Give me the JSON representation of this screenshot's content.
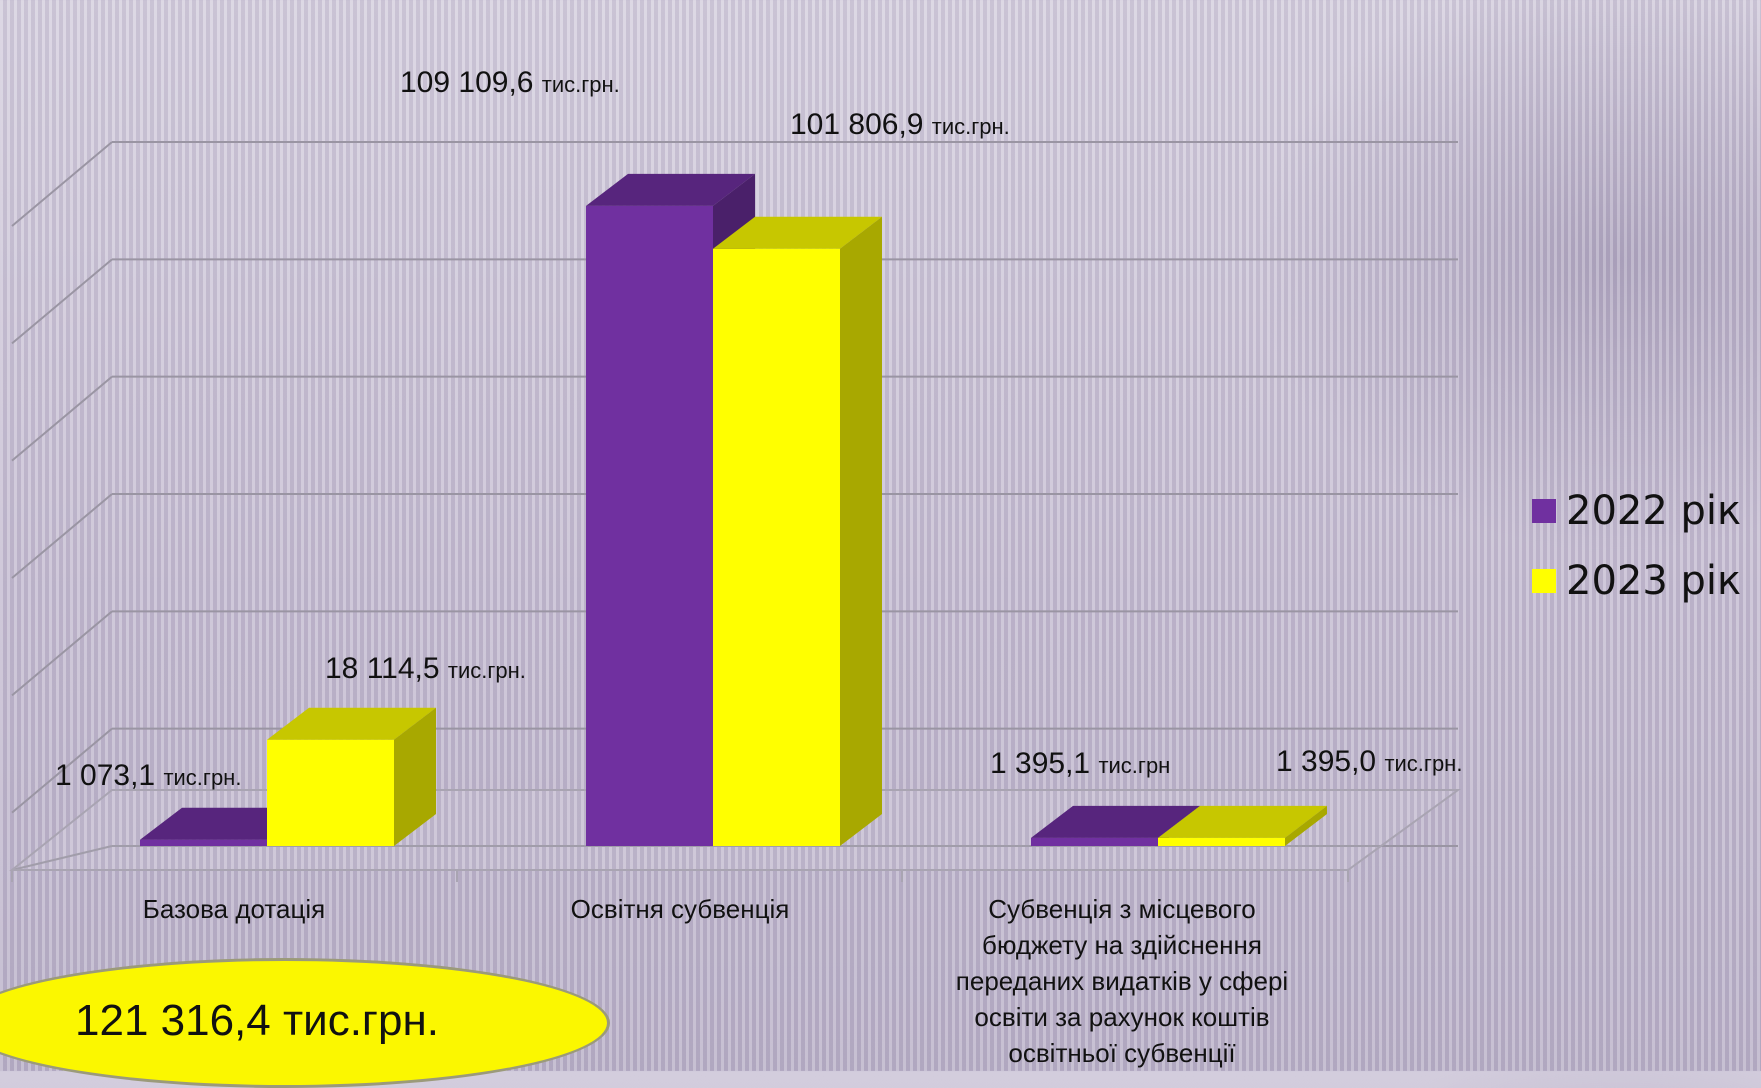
{
  "chart_data": {
    "type": "bar",
    "categories": [
      [
        "Базова дотація"
      ],
      [
        "Освітня субвенція"
      ],
      [
        "Субвенція з місцевого",
        "бюджету на здійснення",
        "переданих видатків у сфері",
        "освіти за рахунок коштів",
        "освітньої субвенції"
      ]
    ],
    "series": [
      {
        "name": "2022 рік",
        "color": "#7030a0",
        "values": [
          1073.1,
          109109.6,
          1395.1
        ]
      },
      {
        "name": "2023 рік",
        "color": "#ffff00",
        "values": [
          18114.5,
          101806.9,
          1395.0
        ]
      }
    ],
    "data_labels": [
      [
        {
          "value": "1 073,1",
          "unit": "тис.грн."
        },
        {
          "value": "18 114,5",
          "unit": "тис.грн."
        }
      ],
      [
        {
          "value": "109 109,6",
          "unit": "тис.грн."
        },
        {
          "value": "101 806,9",
          "unit": "тис.грн."
        }
      ],
      [
        {
          "value": "1 395,1",
          "unit": "тис.грн"
        },
        {
          "value": "1 395,0",
          "unit": "тис.грн."
        }
      ]
    ],
    "ylim": [
      0,
      120000
    ],
    "grid": true,
    "legend_position": "right"
  },
  "total": {
    "label": "121 316,4 тис.грн."
  }
}
